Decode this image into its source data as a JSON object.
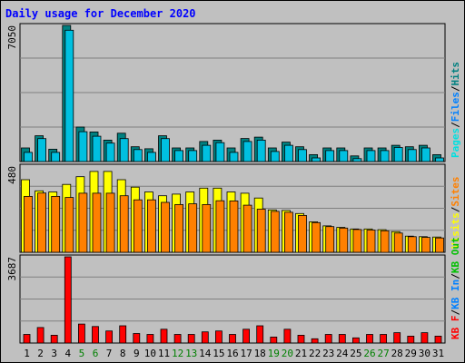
{
  "title": "Daily usage for December 2020",
  "chart_data": [
    {
      "type": "bar",
      "categories": [
        "1",
        "2",
        "3",
        "4",
        "5",
        "6",
        "7",
        "8",
        "9",
        "10",
        "11",
        "12",
        "13",
        "14",
        "15",
        "16",
        "17",
        "18",
        "19",
        "20",
        "21",
        "22",
        "23",
        "24",
        "25",
        "26",
        "27",
        "28",
        "29",
        "30",
        "31"
      ],
      "weekend_days": [
        "5",
        "6",
        "12",
        "13",
        "19",
        "20",
        "26",
        "27"
      ],
      "ymax_label": "7050",
      "ylim": [
        0,
        7050
      ],
      "grid": true,
      "legend": [
        {
          "text": "Pages",
          "color": "#00e0e0"
        },
        {
          "text": "Files",
          "color": "#0080ff"
        },
        {
          "text": "Hits",
          "color": "#008080"
        }
      ],
      "series": [
        {
          "name": "Hits",
          "color": "#008080",
          "values": [
            705,
            1334,
            637,
            7050,
            1785,
            1534,
            1110,
            1467,
            765,
            664,
            1334,
            705,
            705,
            1041,
            1110,
            705,
            1193,
            1262,
            705,
            1007,
            765,
            355,
            705,
            705,
            293,
            705,
            705,
            843,
            765,
            843,
            355
          ]
        },
        {
          "name": "Files",
          "color": "#00c0e0",
          "values": [
            476,
            1191,
            476,
            6800,
            1548,
            1310,
            952,
            1191,
            619,
            476,
            1191,
            571,
            571,
            843,
            976,
            476,
            1040,
            1107,
            520,
            843,
            619,
            188,
            571,
            571,
            150,
            571,
            571,
            730,
            619,
            705,
            188
          ]
        }
      ]
    },
    {
      "type": "bar",
      "ymax_label": "480",
      "ylim": [
        0,
        480
      ],
      "grid": true,
      "legend": [
        {
          "text": "Visits",
          "color": "#ffff00"
        },
        {
          "text": "Sites",
          "color": "#ff8000"
        }
      ],
      "series": [
        {
          "name": "Visits",
          "color": "#ffff00",
          "values": [
            404,
            342,
            336,
            378,
            421,
            450,
            450,
            404,
            363,
            336,
            315,
            324,
            336,
            357,
            357,
            336,
            329,
            302,
            236,
            233,
            216,
            170,
            147,
            139,
            130,
            130,
            126,
            115,
            90,
            87,
            85
          ]
        },
        {
          "name": "Sites",
          "color": "#ff8000",
          "values": [
            311,
            330,
            311,
            305,
            329,
            329,
            329,
            315,
            292,
            292,
            278,
            266,
            270,
            266,
            287,
            286,
            262,
            240,
            228,
            223,
            205,
            165,
            143,
            135,
            127,
            124,
            120,
            107,
            87,
            83,
            80
          ]
        }
      ]
    },
    {
      "type": "bar",
      "ymax_label": "3687",
      "ylim": [
        0,
        3687
      ],
      "grid": true,
      "legend": [
        {
          "text": "KB F",
          "color": "#ff0000"
        },
        {
          "text": "KB In",
          "color": "#0080ff"
        },
        {
          "text": "KB Out",
          "color": "#00c000"
        }
      ],
      "series": [
        {
          "name": "KB F",
          "color": "#ff0000",
          "values": [
            369,
            664,
            332,
            3687,
            811,
            706,
            516,
            737,
            406,
            369,
            590,
            369,
            369,
            479,
            516,
            369,
            590,
            737,
            258,
            590,
            332,
            184,
            369,
            369,
            221,
            369,
            369,
            442,
            295,
            442,
            295
          ]
        }
      ]
    }
  ]
}
